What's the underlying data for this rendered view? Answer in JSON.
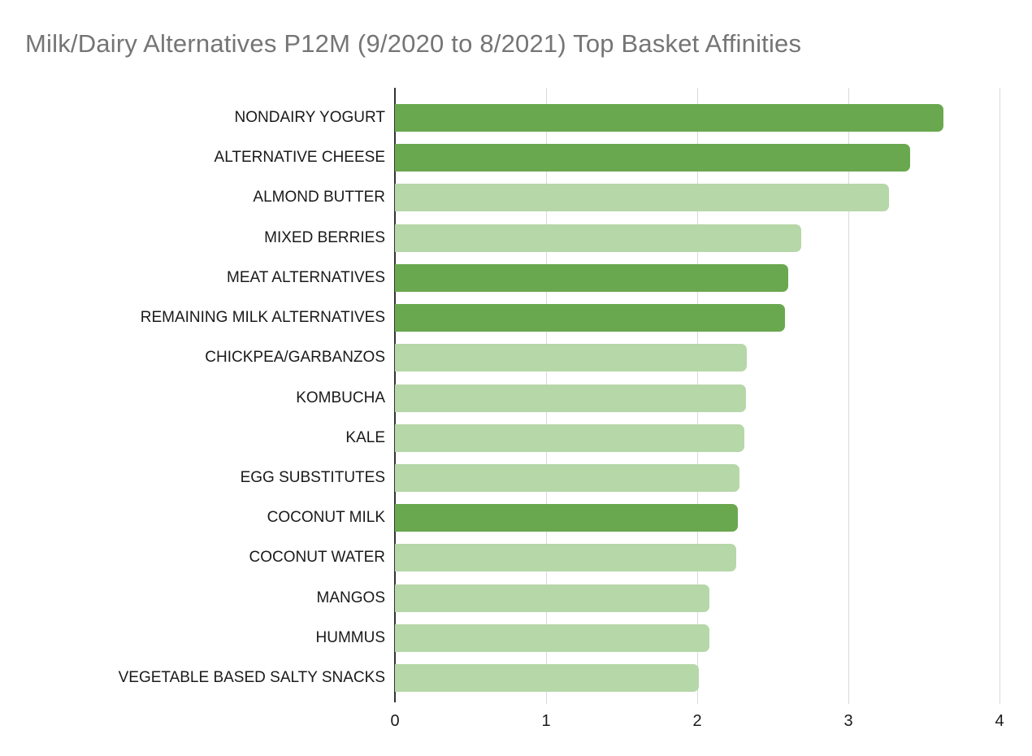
{
  "page": {
    "background": "#ffffff"
  },
  "chart_data": {
    "type": "bar",
    "orientation": "horizontal",
    "title": "Milk/Dairy Alternatives P12M (9/2020 to 8/2021) Top Basket Affinities",
    "categories": [
      "NONDAIRY YOGURT",
      "ALTERNATIVE CHEESE",
      "ALMOND BUTTER",
      "MIXED BERRIES",
      "MEAT ALTERNATIVES",
      "REMAINING MILK ALTERNATIVES",
      "CHICKPEA/GARBANZOS",
      "KOMBUCHA",
      "KALE",
      "EGG SUBSTITUTES",
      "COCONUT MILK",
      "COCONUT WATER",
      "MANGOS",
      "HUMMUS",
      "VEGETABLE BASED SALTY SNACKS"
    ],
    "values": [
      3.63,
      3.41,
      3.27,
      2.69,
      2.6,
      2.58,
      2.33,
      2.32,
      2.31,
      2.28,
      2.27,
      2.26,
      2.08,
      2.08,
      2.01
    ],
    "bar_color_roles": [
      "dark",
      "dark",
      "light",
      "light",
      "dark",
      "dark",
      "light",
      "light",
      "light",
      "light",
      "dark",
      "light",
      "light",
      "light",
      "light"
    ],
    "palette": {
      "dark": "#6aa84f",
      "light": "#b6d7a8"
    },
    "xlabel": "",
    "ylabel": "",
    "xlim": [
      0,
      4
    ],
    "x_ticks": [
      "0",
      "1",
      "2",
      "3",
      "4"
    ],
    "grid": "vertical",
    "legend": "none",
    "colors": {
      "title": "#757575",
      "axis_line": "#333333",
      "gridline": "#d9d9d9",
      "label_text": "#1a1a1a"
    }
  }
}
